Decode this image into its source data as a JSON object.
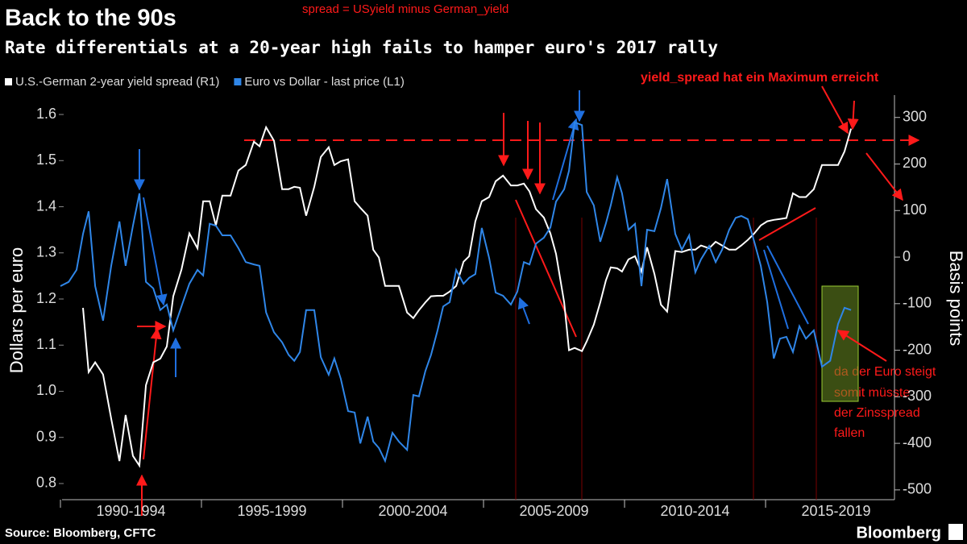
{
  "chart_data": {
    "type": "line",
    "title": "Back to the 90s",
    "subtitle": "Rate differentials at a 20-year high fails to hamper euro's 2017 rally",
    "ylabel": "Dollars per euro",
    "y2label": "Basis points",
    "source": "Source: Bloomberg, CFTC",
    "brand": "Bloomberg",
    "annotations": [
      "spread = USyield minus German_yield",
      "yield_spread hat ein Maximum erreicht",
      "da der Euro steigt",
      "somit müsste",
      "der Zinsspread",
      "fallen"
    ],
    "xlim": [
      1990,
      2019.57
    ],
    "xticks": [
      {
        "value": 1992.5,
        "label": "1990-1994"
      },
      {
        "value": 1997.5,
        "label": "1995-1999"
      },
      {
        "value": 2002.5,
        "label": "2000-2004"
      },
      {
        "value": 2007.5,
        "label": "2005-2009"
      },
      {
        "value": 2012.5,
        "label": "2010-2014"
      },
      {
        "value": 2017.5,
        "label": "2015-2019"
      }
    ],
    "ylim": [
      0.765,
      1.642
    ],
    "yticks": [
      0.8,
      0.9,
      {
        "value": 1,
        "label": "1.0"
      },
      1.1,
      1.2,
      1.3,
      1.4,
      1.5,
      1.6
    ],
    "y2lim": [
      -521,
      348
    ],
    "y2ticks": [
      -500,
      -400,
      -300,
      -200,
      -100,
      0,
      100,
      200,
      300
    ],
    "x": [
      1990.0,
      1990.29,
      1990.57,
      1990.8,
      1991.0,
      1991.23,
      1991.51,
      1991.8,
      1992.09,
      1992.31,
      1992.57,
      1992.8,
      1993.03,
      1993.29,
      1993.54,
      1993.77,
      1994.0,
      1994.29,
      1994.57,
      1994.86,
      1995.06,
      1995.29,
      1995.51,
      1995.74,
      1996.03,
      1996.31,
      1996.57,
      1996.86,
      1997.06,
      1997.29,
      1997.57,
      1997.86,
      1998.09,
      1998.29,
      1998.49,
      1998.71,
      1999.0,
      1999.23,
      1999.51,
      1999.71,
      1999.94,
      2000.2,
      2000.43,
      2000.63,
      2000.89,
      2001.09,
      2001.29,
      2001.51,
      2001.77,
      2002.0,
      2002.29,
      2002.51,
      2002.71,
      2002.94,
      2003.14,
      2003.37,
      2003.57,
      2003.8,
      2004.03,
      2004.29,
      2004.49,
      2004.71,
      2004.94,
      2005.2,
      2005.43,
      2005.69,
      2005.97,
      2006.2,
      2006.43,
      2006.63,
      2006.86,
      2007.14,
      2007.37,
      2007.57,
      2007.86,
      2008.03,
      2008.23,
      2008.49,
      2008.66,
      2008.91,
      2009.14,
      2009.34,
      2009.51,
      2009.74,
      2009.91,
      2010.14,
      2010.37,
      2010.6,
      2010.8,
      2011.06,
      2011.29,
      2011.51,
      2011.8,
      2012.03,
      2012.29,
      2012.51,
      2012.71,
      2013.0,
      2013.23,
      2013.46,
      2013.71,
      2013.94,
      2014.14,
      2014.37,
      2014.6,
      2014.83,
      2015.06,
      2015.29,
      2015.51,
      2015.74,
      2015.97,
      2016.2,
      2016.43,
      2016.71,
      2017.0,
      2017.29,
      2017.57,
      2017.8,
      2018.03
    ],
    "series": [
      {
        "name": "U.S.-German 2-year yield spread (R1)",
        "color": "#ffffff",
        "axis": "y2",
        "values": [
          null,
          null,
          null,
          -109,
          -247,
          -226,
          -252,
          -347,
          -438,
          -339,
          -427,
          -448,
          -275,
          -226,
          -218,
          -192,
          -84,
          -27,
          51,
          19,
          120,
          120,
          68,
          132,
          132,
          186,
          198,
          248,
          238,
          279,
          250,
          146,
          146,
          151,
          149,
          89,
          151,
          215,
          236,
          198,
          206,
          210,
          120,
          106,
          89,
          16,
          -1,
          -62,
          -62,
          -62,
          -119,
          -131,
          -114,
          -97,
          -84,
          -83,
          -83,
          -74,
          -62,
          -10,
          2,
          77,
          120,
          129,
          163,
          175,
          154,
          154,
          158,
          141,
          103,
          85,
          51,
          7,
          -97,
          -200,
          -195,
          -202,
          -181,
          -145,
          -97,
          -50,
          -22,
          -24,
          -31,
          -5,
          2,
          -31,
          21,
          -36,
          -102,
          -117,
          13,
          11,
          16,
          16,
          25,
          19,
          33,
          25,
          16,
          16,
          25,
          37,
          51,
          68,
          77,
          80,
          82,
          84,
          137,
          129,
          129,
          146,
          198,
          198,
          198,
          227,
          276
        ]
      },
      {
        "name": "Euro vs Dollar - last price (L1)",
        "color": "#2f86e8",
        "values": [
          1.228,
          1.237,
          1.263,
          1.341,
          1.39,
          1.228,
          1.153,
          1.272,
          1.368,
          1.272,
          1.359,
          1.429,
          1.237,
          1.223,
          1.176,
          1.188,
          1.132,
          1.184,
          1.233,
          1.263,
          1.251,
          1.363,
          1.359,
          1.338,
          1.338,
          1.31,
          1.28,
          1.275,
          1.272,
          1.171,
          1.128,
          1.106,
          1.079,
          1.066,
          1.085,
          1.176,
          1.176,
          1.074,
          1.036,
          1.071,
          1.027,
          0.957,
          0.954,
          0.887,
          0.945,
          0.891,
          0.877,
          0.849,
          0.91,
          0.891,
          0.873,
          0.992,
          0.989,
          1.044,
          1.079,
          1.132,
          1.184,
          1.193,
          1.263,
          1.233,
          1.246,
          1.254,
          1.354,
          1.289,
          1.214,
          1.207,
          1.188,
          1.216,
          1.28,
          1.275,
          1.32,
          1.333,
          1.355,
          1.411,
          1.438,
          1.478,
          1.583,
          1.577,
          1.432,
          1.403,
          1.324,
          1.364,
          1.403,
          1.464,
          1.429,
          1.35,
          1.363,
          1.228,
          1.35,
          1.347,
          1.397,
          1.46,
          1.341,
          1.307,
          1.338,
          1.258,
          1.286,
          1.315,
          1.28,
          1.307,
          1.35,
          1.376,
          1.38,
          1.373,
          1.324,
          1.272,
          1.193,
          1.071,
          1.114,
          1.118,
          1.085,
          1.141,
          1.114,
          1.132,
          1.053,
          1.066,
          1.146,
          1.181,
          1.176
        ]
      }
    ]
  }
}
